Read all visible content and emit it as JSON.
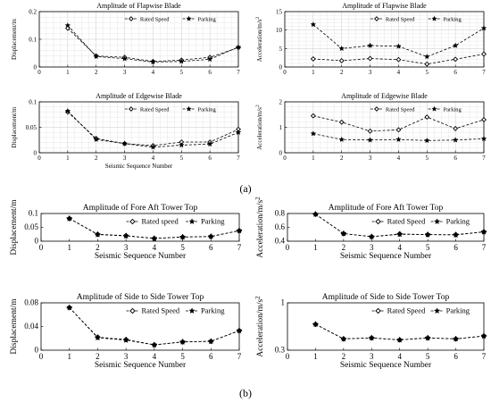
{
  "figure_labels": [
    "(a)",
    "(b)"
  ],
  "chart_data": [
    {
      "type": "line",
      "group": "a",
      "title": "Amplitude of Flapwise Blade",
      "xlabel": "",
      "ylabel": "Displacement/m",
      "x": [
        1,
        2,
        3,
        4,
        5,
        6,
        7
      ],
      "xlim": [
        0,
        7
      ],
      "xticks": [
        "0",
        "1",
        "2",
        "3",
        "4",
        "5",
        "6",
        "7"
      ],
      "ylim": [
        0,
        0.2
      ],
      "yticks": [
        "0",
        "0.1",
        "0.2"
      ],
      "grid": true,
      "minor_grid": true,
      "legend": "top-right",
      "series": [
        {
          "name": "Rated Speed",
          "marker": "diamond",
          "values": [
            0.14,
            0.04,
            0.035,
            0.02,
            0.025,
            0.035,
            0.07
          ]
        },
        {
          "name": "Parking",
          "marker": "star",
          "values": [
            0.15,
            0.038,
            0.03,
            0.018,
            0.02,
            0.028,
            0.072
          ]
        }
      ]
    },
    {
      "type": "line",
      "group": "a",
      "title": "Amplitude of Flapwise Blade",
      "xlabel": "",
      "ylabel": "Acceleration/m/s",
      "ylabel_sup": "2",
      "x": [
        1,
        2,
        3,
        4,
        5,
        6,
        7
      ],
      "xlim": [
        0,
        7
      ],
      "xticks": [
        "0",
        "1",
        "2",
        "3",
        "4",
        "5",
        "6",
        "7"
      ],
      "ylim": [
        0,
        15
      ],
      "yticks": [
        "0",
        "5",
        "10",
        "15"
      ],
      "grid": true,
      "minor_grid": true,
      "legend": "top-right",
      "series": [
        {
          "name": "Rated Speed",
          "marker": "diamond",
          "values": [
            2.2,
            1.7,
            2.3,
            2.0,
            0.8,
            2.1,
            3.5
          ]
        },
        {
          "name": "Parking",
          "marker": "star",
          "values": [
            11.5,
            5.0,
            5.8,
            5.6,
            2.8,
            5.8,
            10.5
          ]
        }
      ]
    },
    {
      "type": "line",
      "group": "a",
      "title": "Amplitude of Edgewise Blade",
      "xlabel": "Seismic Sequence Number",
      "ylabel": "Displacement/m",
      "x": [
        1,
        2,
        3,
        4,
        5,
        6,
        7
      ],
      "xlim": [
        0,
        7
      ],
      "xticks": [
        "0",
        "1",
        "2",
        "3",
        "4",
        "5",
        "6",
        "7"
      ],
      "ylim": [
        0,
        0.1
      ],
      "yticks": [
        "0",
        "0.05",
        "0.1"
      ],
      "grid": true,
      "minor_grid": true,
      "legend": "top-right",
      "series": [
        {
          "name": "Rated Speed",
          "marker": "diamond",
          "values": [
            0.08,
            0.028,
            0.018,
            0.014,
            0.021,
            0.021,
            0.046
          ]
        },
        {
          "name": "Parking",
          "marker": "star",
          "values": [
            0.082,
            0.026,
            0.018,
            0.011,
            0.015,
            0.017,
            0.04
          ]
        }
      ]
    },
    {
      "type": "line",
      "group": "a",
      "title": "Amplitude of Edgewise Blade",
      "xlabel": "",
      "ylabel": "Acceleration/m/s",
      "ylabel_sup": "2",
      "x": [
        1,
        2,
        3,
        4,
        5,
        6,
        7
      ],
      "xlim": [
        0,
        7
      ],
      "xticks": [
        "0",
        "1",
        "2",
        "3",
        "4",
        "5",
        "6",
        "7"
      ],
      "ylim": [
        0,
        2
      ],
      "yticks": [
        "0",
        "1",
        "2"
      ],
      "grid": true,
      "minor_grid": true,
      "legend": "top-right",
      "series": [
        {
          "name": "Rated Speed",
          "marker": "diamond",
          "values": [
            1.45,
            1.2,
            0.85,
            0.9,
            1.4,
            0.95,
            1.3
          ]
        },
        {
          "name": "Parking",
          "marker": "star",
          "values": [
            0.75,
            0.52,
            0.5,
            0.52,
            0.48,
            0.5,
            0.55
          ]
        }
      ]
    },
    {
      "type": "line",
      "group": "b",
      "title": "Amplitude of Fore Aft Tower Top",
      "xlabel": "Seismic Sequence Number",
      "ylabel": "Displacement/m",
      "x": [
        1,
        2,
        3,
        4,
        5,
        6,
        7
      ],
      "xlim": [
        0,
        7
      ],
      "xticks": [
        "0",
        "1",
        "2",
        "3",
        "4",
        "5",
        "6",
        "7"
      ],
      "ylim": [
        0,
        0.1
      ],
      "yticks": [
        "0",
        "0.05",
        "0.1"
      ],
      "grid": false,
      "legend": "top-right",
      "series": [
        {
          "name": "Rated speed",
          "marker": "diamond",
          "values": [
            0.082,
            0.025,
            0.02,
            0.01,
            0.015,
            0.017,
            0.038
          ]
        },
        {
          "name": "Parking",
          "marker": "star",
          "values": [
            0.082,
            0.024,
            0.019,
            0.01,
            0.015,
            0.017,
            0.038
          ]
        }
      ]
    },
    {
      "type": "line",
      "group": "b",
      "title": "Amplitude of Fore Aft Tower Top",
      "xlabel": "Seismic Sequence Number",
      "ylabel": "Acceleration/m/s",
      "ylabel_sup": "2",
      "x": [
        1,
        2,
        3,
        4,
        5,
        6,
        7
      ],
      "xlim": [
        0,
        7
      ],
      "xticks": [
        "0",
        "1",
        "2",
        "3",
        "4",
        "5",
        "6",
        "7"
      ],
      "ylim": [
        0.4,
        0.8
      ],
      "yticks": [
        "0.4",
        "0.6",
        "0.8"
      ],
      "grid": false,
      "legend": "top-right",
      "series": [
        {
          "name": "Rated Speed",
          "marker": "diamond",
          "values": [
            0.79,
            0.51,
            0.465,
            0.505,
            0.495,
            0.495,
            0.535
          ]
        },
        {
          "name": "Parking",
          "marker": "star",
          "values": [
            0.79,
            0.51,
            0.465,
            0.5,
            0.495,
            0.49,
            0.535
          ]
        }
      ]
    },
    {
      "type": "line",
      "group": "b",
      "title": "Amplitude of Side to Side Tower Top",
      "xlabel": "Seismic Sequence Number",
      "ylabel": "Displacement/m",
      "x": [
        1,
        2,
        3,
        4,
        5,
        6,
        7
      ],
      "xlim": [
        0,
        7
      ],
      "xticks": [
        "0",
        "1",
        "2",
        "3",
        "4",
        "5",
        "6",
        "7"
      ],
      "ylim": [
        0,
        0.08
      ],
      "yticks": [
        "0",
        "0.04",
        "0.08"
      ],
      "grid": false,
      "legend": "top-right",
      "series": [
        {
          "name": "Rated Speed",
          "marker": "diamond",
          "values": [
            0.072,
            0.022,
            0.018,
            0.009,
            0.014,
            0.015,
            0.033
          ]
        },
        {
          "name": "Parking",
          "marker": "star",
          "values": [
            0.072,
            0.021,
            0.017,
            0.009,
            0.014,
            0.015,
            0.033
          ]
        }
      ]
    },
    {
      "type": "line",
      "group": "b",
      "title": "Amplitude of Side to Side Tower Top",
      "xlabel": "Seismic Sequence Number",
      "ylabel": "Acceleration/m/s",
      "ylabel_sup": "2",
      "x": [
        1,
        2,
        3,
        4,
        5,
        6,
        7
      ],
      "xlim": [
        0,
        7
      ],
      "xticks": [
        "0",
        "1",
        "2",
        "3",
        "4",
        "5",
        "6",
        "7"
      ],
      "ylim": [
        0.3,
        1
      ],
      "yticks": [
        "0.3",
        "",
        "1"
      ],
      "yscale": "log",
      "grid": false,
      "legend": "top-right",
      "series": [
        {
          "name": "Rated Speed",
          "marker": "diamond",
          "values": [
            0.58,
            0.4,
            0.41,
            0.39,
            0.41,
            0.4,
            0.43
          ]
        },
        {
          "name": "Parking",
          "marker": "star",
          "values": [
            0.58,
            0.4,
            0.41,
            0.39,
            0.41,
            0.4,
            0.43
          ]
        }
      ]
    }
  ]
}
